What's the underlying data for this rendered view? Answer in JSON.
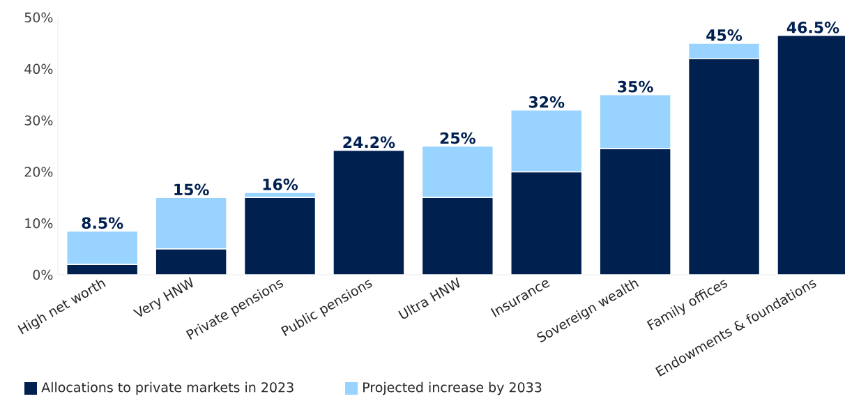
{
  "chart_data": {
    "type": "bar",
    "stacked": true,
    "categories": [
      "High net worth",
      "Very HNW",
      "Private pensions",
      "Public pensions",
      "Ultra HNW",
      "Insurance",
      "Sovereign wealth",
      "Family offices",
      "Endowments & foundations"
    ],
    "series": [
      {
        "name": "Allocations to private markets in 2023",
        "color": "#002050",
        "values": [
          2,
          5,
          15,
          24.2,
          15,
          20,
          24.5,
          42,
          46.5
        ]
      },
      {
        "name": "Projected increase by 2033",
        "color": "#99d3ff",
        "values": [
          6.5,
          10,
          1,
          null,
          10,
          12,
          10.5,
          3,
          null
        ]
      }
    ],
    "totals": [
      "8.5%",
      "15%",
      "16%",
      "24.2%",
      "25%",
      "32%",
      "35%",
      "45%",
      "46.5%"
    ],
    "ylim": [
      0,
      50
    ],
    "yticks": [
      {
        "value": 0,
        "label": "0%"
      },
      {
        "value": 10,
        "label": "10%"
      },
      {
        "value": 20,
        "label": "20%"
      },
      {
        "value": 30,
        "label": "30%"
      },
      {
        "value": 40,
        "label": "40%"
      },
      {
        "value": 50,
        "label": "50%"
      }
    ],
    "grid": false,
    "legend": "bottom left"
  }
}
